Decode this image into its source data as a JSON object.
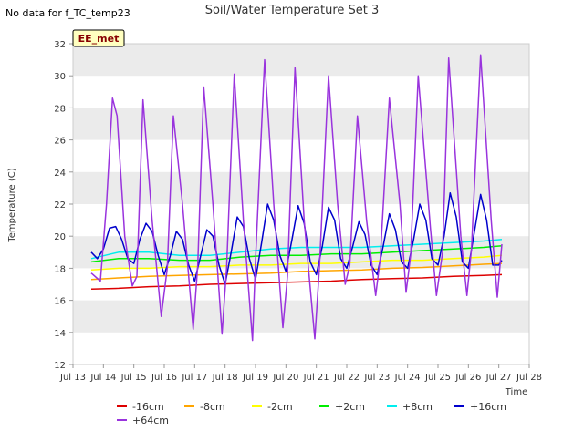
{
  "chart_data": {
    "type": "line",
    "title": "Soil/Water Temperature Set 3",
    "corner_note": "No data for f_TC_temp23",
    "badge": "EE_met",
    "xlabel": "Time",
    "ylabel": "Temperature (C)",
    "xlim": [
      13,
      28
    ],
    "ylim": [
      12,
      32
    ],
    "x_ticks": [
      13,
      14,
      15,
      16,
      17,
      18,
      19,
      20,
      21,
      22,
      23,
      24,
      25,
      26,
      27,
      28
    ],
    "x_tick_labels": [
      "Jul 13",
      "Jul 14",
      "Jul 15",
      "Jul 16",
      "Jul 17",
      "Jul 18",
      "Jul 19",
      "Jul 20",
      "Jul 21",
      "Jul 22",
      "Jul 23",
      "Jul 24",
      "Jul 25",
      "Jul 26",
      "Jul 27",
      "Jul 28"
    ],
    "y_ticks": [
      12,
      14,
      16,
      18,
      20,
      22,
      24,
      26,
      28,
      30,
      32
    ],
    "grid": "horizontal bands",
    "legend_position": "bottom",
    "series": [
      {
        "name": "-16cm",
        "color": "#dd0000",
        "x": [
          13.6,
          14.5,
          15.5,
          16.5,
          17.5,
          18.5,
          19.5,
          20.5,
          21.5,
          22.5,
          23.5,
          24.5,
          25.5,
          26.5,
          27.1
        ],
        "y": [
          16.7,
          16.75,
          16.85,
          16.9,
          17.0,
          17.05,
          17.1,
          17.15,
          17.2,
          17.3,
          17.35,
          17.4,
          17.5,
          17.55,
          17.6
        ]
      },
      {
        "name": "-8cm",
        "color": "#ffa500",
        "x": [
          13.6,
          14.5,
          15.5,
          16.5,
          17.5,
          18.5,
          19.5,
          20.5,
          21.5,
          22.5,
          23.5,
          24.5,
          25.5,
          26.5,
          27.1
        ],
        "y": [
          17.3,
          17.4,
          17.5,
          17.55,
          17.6,
          17.65,
          17.7,
          17.8,
          17.85,
          17.9,
          18.0,
          18.05,
          18.15,
          18.25,
          18.3
        ]
      },
      {
        "name": "-2cm",
        "color": "#ffff00",
        "x": [
          13.6,
          14.5,
          15.5,
          16.5,
          17.5,
          18.5,
          19.5,
          20.5,
          21.5,
          22.5,
          23.5,
          24.5,
          25.5,
          26.5,
          27.1
        ],
        "y": [
          17.9,
          18.0,
          18.0,
          18.1,
          18.1,
          18.2,
          18.2,
          18.3,
          18.3,
          18.4,
          18.5,
          18.5,
          18.6,
          18.7,
          18.8
        ]
      },
      {
        "name": "+2cm",
        "color": "#00ee00",
        "x": [
          13.6,
          14.5,
          15.5,
          16.5,
          17.5,
          18.5,
          19.5,
          20.5,
          21.5,
          22.5,
          23.5,
          24.5,
          25.5,
          26.5,
          27.1
        ],
        "y": [
          18.4,
          18.6,
          18.6,
          18.5,
          18.5,
          18.7,
          18.8,
          18.8,
          18.9,
          18.9,
          19.0,
          19.1,
          19.2,
          19.3,
          19.4
        ]
      },
      {
        "name": "+8cm",
        "color": "#00eeee",
        "x": [
          13.6,
          14.5,
          15.5,
          16.5,
          17.5,
          18.5,
          19.5,
          20.5,
          21.5,
          22.5,
          23.5,
          24.5,
          25.5,
          26.5,
          27.1
        ],
        "y": [
          18.6,
          19.0,
          19.0,
          18.8,
          18.8,
          19.0,
          19.2,
          19.3,
          19.3,
          19.3,
          19.4,
          19.5,
          19.6,
          19.7,
          19.8
        ]
      },
      {
        "name": "+16cm",
        "color": "#0000cc",
        "x": [
          13.6,
          13.8,
          14.0,
          14.2,
          14.4,
          14.6,
          14.8,
          15.0,
          15.2,
          15.4,
          15.6,
          15.8,
          16.0,
          16.2,
          16.4,
          16.6,
          16.8,
          17.0,
          17.2,
          17.4,
          17.6,
          17.8,
          18.0,
          18.2,
          18.4,
          18.6,
          18.8,
          19.0,
          19.2,
          19.4,
          19.6,
          19.8,
          20.0,
          20.2,
          20.4,
          20.6,
          20.8,
          21.0,
          21.2,
          21.4,
          21.6,
          21.8,
          22.0,
          22.2,
          22.4,
          22.6,
          22.8,
          23.0,
          23.2,
          23.4,
          23.6,
          23.8,
          24.0,
          24.2,
          24.4,
          24.6,
          24.8,
          25.0,
          25.2,
          25.4,
          25.6,
          25.8,
          26.0,
          26.2,
          26.4,
          26.6,
          26.8,
          27.0,
          27.1
        ],
        "y": [
          19.0,
          18.6,
          19.2,
          20.5,
          20.6,
          19.8,
          18.6,
          18.3,
          19.8,
          20.8,
          20.3,
          18.8,
          17.6,
          18.8,
          20.3,
          19.8,
          18.2,
          17.2,
          18.8,
          20.4,
          20.0,
          18.2,
          17.0,
          19.0,
          21.2,
          20.6,
          18.6,
          17.3,
          19.6,
          22.0,
          21.0,
          18.8,
          17.8,
          19.8,
          21.9,
          20.8,
          18.4,
          17.6,
          19.4,
          21.8,
          21.0,
          18.6,
          18.0,
          19.4,
          20.9,
          20.1,
          18.2,
          17.6,
          19.4,
          21.4,
          20.4,
          18.4,
          18.0,
          19.8,
          22.0,
          21.0,
          18.6,
          18.2,
          20.0,
          22.7,
          21.2,
          18.4,
          18.0,
          20.3,
          22.6,
          21.0,
          18.2,
          18.2,
          18.5
        ]
      },
      {
        "name": "+64cm",
        "color": "#9933dd",
        "x": [
          13.6,
          13.9,
          14.1,
          14.3,
          14.45,
          14.7,
          14.95,
          15.1,
          15.3,
          15.6,
          15.9,
          16.1,
          16.3,
          16.6,
          16.95,
          17.1,
          17.3,
          17.6,
          17.9,
          18.05,
          18.3,
          18.6,
          18.9,
          19.0,
          19.3,
          19.6,
          19.9,
          20.05,
          20.3,
          20.6,
          20.95,
          21.1,
          21.4,
          21.7,
          21.95,
          22.1,
          22.35,
          22.65,
          22.95,
          23.1,
          23.4,
          23.75,
          23.95,
          24.1,
          24.35,
          24.75,
          24.95,
          25.15,
          25.35,
          25.75,
          25.95,
          26.1,
          26.4,
          26.75,
          26.95,
          27.1
        ],
        "y": [
          17.7,
          17.2,
          22.0,
          28.6,
          27.5,
          20.0,
          16.9,
          17.5,
          28.5,
          21.0,
          15.0,
          18.0,
          27.5,
          22.0,
          14.2,
          18.2,
          29.3,
          22.0,
          13.9,
          18.0,
          30.1,
          21.0,
          13.5,
          18.5,
          31.0,
          22.0,
          14.3,
          17.5,
          30.5,
          21.0,
          13.6,
          18.0,
          30.0,
          22.0,
          17.0,
          18.2,
          27.5,
          21.0,
          16.3,
          18.6,
          28.6,
          22.0,
          16.5,
          18.8,
          30.0,
          20.5,
          16.3,
          19.0,
          31.1,
          20.0,
          16.3,
          19.2,
          31.3,
          21.0,
          16.2,
          19.5
        ]
      }
    ]
  }
}
